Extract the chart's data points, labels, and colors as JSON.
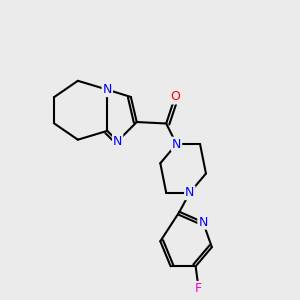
{
  "background_color": "#ebebeb",
  "bond_color": "#000000",
  "bond_width": 1.5,
  "atom_colors": {
    "N": "#0000ff",
    "O": "#ff0000",
    "F": "#ff00cc",
    "C": "#000000"
  },
  "font_size": 9,
  "fig_size": [
    3.0,
    3.0
  ],
  "dpi": 100,
  "xlim": [
    0,
    10
  ],
  "ylim": [
    0,
    10
  ]
}
